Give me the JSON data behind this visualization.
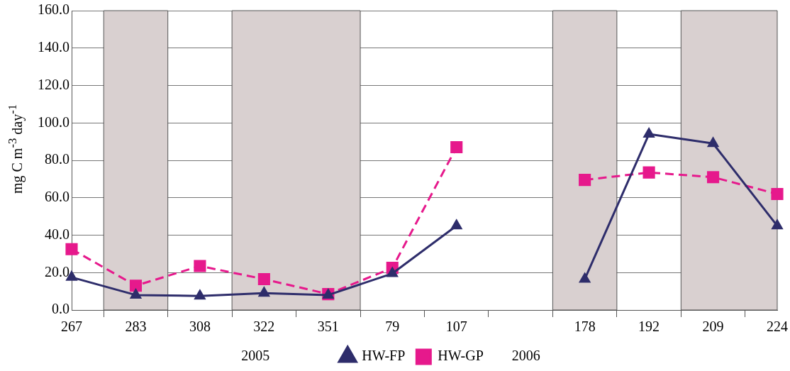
{
  "chart_data": {
    "type": "line",
    "ylabel": "mg C m$^{-3}$ day$^{-1}$",
    "categories": [
      "267",
      "283",
      "308",
      "322",
      "351",
      "79",
      "107",
      null,
      "178",
      "192",
      "209",
      "224"
    ],
    "series": [
      {
        "name": "HW-FP",
        "color": "#2e2d6b",
        "marker": "triangle",
        "line_style": "solid",
        "values": [
          17.5,
          8,
          7.5,
          9,
          8,
          19.5,
          45,
          null,
          16.5,
          94,
          89,
          45
        ]
      },
      {
        "name": "HW-GP",
        "color": "#e6198c",
        "marker": "square",
        "line_style": "dashed",
        "values": [
          32.5,
          13,
          23.5,
          16.5,
          8.5,
          22.5,
          87,
          null,
          69.5,
          73.5,
          71,
          62
        ]
      }
    ],
    "ylim": [
      0,
      160
    ],
    "yticks": [
      {
        "value": 0,
        "label": "0.0"
      },
      {
        "value": 20,
        "label": "20.0"
      },
      {
        "value": 40,
        "label": "40.0"
      },
      {
        "value": 60,
        "label": "60.0"
      },
      {
        "value": 80,
        "label": "80.0"
      },
      {
        "value": 100,
        "label": "100.0"
      },
      {
        "value": 120,
        "label": "120.0"
      },
      {
        "value": 140,
        "label": "140.0"
      },
      {
        "value": 160,
        "label": "160.0"
      }
    ],
    "bands": [
      {
        "axis": "x",
        "from": "283",
        "to": "283",
        "color": "#d9d0d0"
      },
      {
        "axis": "x",
        "from": "322",
        "to": "351",
        "color": "#d9d0d0"
      },
      {
        "axis": "x",
        "from": "178",
        "to": "178",
        "color": "#d9d0d0"
      },
      {
        "axis": "x",
        "from": "209",
        "to": "224",
        "color": "#d9d0d0"
      }
    ],
    "annotations": [
      "2005",
      "2006"
    ],
    "grid": "y",
    "legend": "bottom"
  }
}
